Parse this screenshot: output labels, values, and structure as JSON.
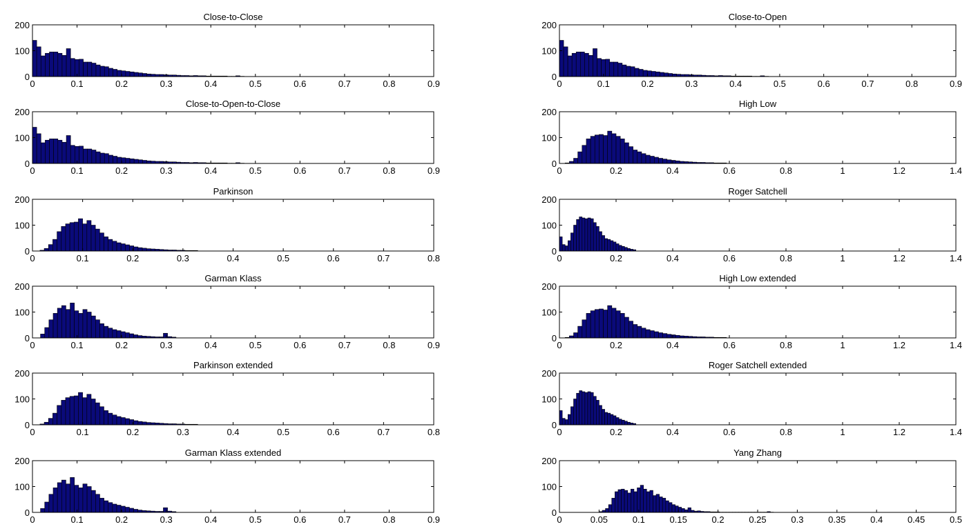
{
  "figure": {
    "bar_color": "#0a0a7a",
    "bar_edge_color": "#000000",
    "background": "#ffffff"
  },
  "chart_data": [
    {
      "type": "bar",
      "title": "Close-to-Close",
      "xlim": [
        0,
        0.9
      ],
      "ylim": [
        0,
        200
      ],
      "xticks": [
        0,
        0.1,
        0.2,
        0.3,
        0.4,
        0.5,
        0.6,
        0.7,
        0.8,
        0.9
      ],
      "xtick_labels": [
        "0",
        "0.1",
        "0.2",
        "0.3",
        "0.4",
        "0.5",
        "0.6",
        "0.7",
        "0.8",
        "0.9"
      ],
      "yticks": [
        0,
        100,
        200
      ],
      "bin_start": 0,
      "bin_width": 0.0095,
      "values": [
        140,
        115,
        80,
        90,
        95,
        95,
        90,
        82,
        108,
        70,
        66,
        67,
        56,
        56,
        52,
        45,
        40,
        38,
        32,
        28,
        24,
        22,
        20,
        18,
        16,
        14,
        12,
        10,
        9,
        8,
        8,
        7,
        6,
        6,
        5,
        4,
        4,
        3,
        4,
        3,
        3,
        2,
        2,
        2,
        2,
        2,
        1,
        1,
        3,
        1
      ]
    },
    {
      "type": "bar",
      "title": "Close-to-Open",
      "xlim": [
        0,
        0.9
      ],
      "ylim": [
        0,
        200
      ],
      "xticks": [
        0,
        0.1,
        0.2,
        0.3,
        0.4,
        0.5,
        0.6,
        0.7,
        0.8,
        0.9
      ],
      "xtick_labels": [
        "0",
        "0.1",
        "0.2",
        "0.3",
        "0.4",
        "0.5",
        "0.6",
        "0.7",
        "0.8",
        "0.9"
      ],
      "yticks": [
        0,
        100,
        200
      ],
      "bin_start": 0,
      "bin_width": 0.0095,
      "values": [
        140,
        115,
        80,
        90,
        95,
        95,
        90,
        82,
        108,
        70,
        66,
        67,
        56,
        56,
        52,
        45,
        40,
        38,
        32,
        28,
        24,
        22,
        20,
        18,
        16,
        14,
        12,
        10,
        9,
        8,
        8,
        7,
        6,
        6,
        5,
        4,
        4,
        3,
        4,
        3,
        3,
        2,
        2,
        2,
        2,
        2,
        1,
        1,
        3,
        1
      ]
    },
    {
      "type": "bar",
      "title": "Close-to-Open-to-Close",
      "xlim": [
        0,
        0.9
      ],
      "ylim": [
        0,
        200
      ],
      "xticks": [
        0,
        0.1,
        0.2,
        0.3,
        0.4,
        0.5,
        0.6,
        0.7,
        0.8,
        0.9
      ],
      "xtick_labels": [
        "0",
        "0.1",
        "0.2",
        "0.3",
        "0.4",
        "0.5",
        "0.6",
        "0.7",
        "0.8",
        "0.9"
      ],
      "yticks": [
        0,
        100,
        200
      ],
      "bin_start": 0,
      "bin_width": 0.0095,
      "values": [
        140,
        115,
        80,
        90,
        95,
        95,
        90,
        82,
        108,
        70,
        66,
        67,
        56,
        56,
        52,
        45,
        40,
        38,
        32,
        28,
        24,
        22,
        20,
        18,
        16,
        14,
        12,
        10,
        9,
        8,
        8,
        7,
        6,
        6,
        5,
        4,
        4,
        3,
        4,
        3,
        3,
        2,
        2,
        2,
        2,
        2,
        1,
        1,
        3,
        1
      ]
    },
    {
      "type": "bar",
      "title": "High Low",
      "xlim": [
        0,
        1.4
      ],
      "ylim": [
        0,
        200
      ],
      "xticks": [
        0,
        0.2,
        0.4,
        0.6,
        0.8,
        1,
        1.2,
        1.4
      ],
      "xtick_labels": [
        "0",
        "0.2",
        "0.4",
        "0.6",
        "0.8",
        "1",
        "1.2",
        "1.4"
      ],
      "yticks": [
        0,
        100,
        200
      ],
      "bin_start": 0.02,
      "bin_width": 0.015,
      "values": [
        2,
        8,
        20,
        45,
        70,
        95,
        105,
        110,
        112,
        108,
        125,
        115,
        105,
        95,
        80,
        65,
        52,
        45,
        38,
        32,
        28,
        24,
        20,
        17,
        14,
        12,
        10,
        8,
        7,
        6,
        5,
        4,
        4,
        3,
        3,
        2,
        2,
        2
      ]
    },
    {
      "type": "bar",
      "title": "Parkinson",
      "xlim": [
        0,
        0.8
      ],
      "ylim": [
        0,
        200
      ],
      "xticks": [
        0,
        0.1,
        0.2,
        0.3,
        0.4,
        0.5,
        0.6,
        0.7,
        0.8
      ],
      "xtick_labels": [
        "0",
        "0.1",
        "0.2",
        "0.3",
        "0.4",
        "0.5",
        "0.6",
        "0.7",
        "0.8"
      ],
      "yticks": [
        0,
        100,
        200
      ],
      "bin_start": 0.015,
      "bin_width": 0.0085,
      "values": [
        3,
        10,
        25,
        45,
        75,
        95,
        105,
        110,
        112,
        125,
        105,
        118,
        100,
        85,
        70,
        55,
        45,
        38,
        32,
        28,
        24,
        20,
        16,
        13,
        11,
        9,
        8,
        7,
        6,
        5,
        4,
        4,
        3,
        3,
        2,
        2,
        2
      ]
    },
    {
      "type": "bar",
      "title": "Roger Satchell",
      "xlim": [
        0,
        1.4
      ],
      "ylim": [
        0,
        200
      ],
      "xticks": [
        0,
        0.2,
        0.4,
        0.6,
        0.8,
        1,
        1.2,
        1.4
      ],
      "xtick_labels": [
        "0",
        "0.2",
        "0.4",
        "0.6",
        "0.8",
        "1",
        "1.2",
        "1.4"
      ],
      "yticks": [
        0,
        100,
        200
      ],
      "bin_start": 0,
      "bin_width": 0.01,
      "values": [
        55,
        25,
        20,
        40,
        70,
        100,
        122,
        132,
        128,
        125,
        128,
        125,
        110,
        95,
        75,
        60,
        48,
        45,
        40,
        35,
        28,
        22,
        18,
        14,
        10,
        7,
        5
      ]
    },
    {
      "type": "bar",
      "title": "Garman Klass",
      "xlim": [
        0,
        0.9
      ],
      "ylim": [
        0,
        200
      ],
      "xticks": [
        0,
        0.1,
        0.2,
        0.3,
        0.4,
        0.5,
        0.6,
        0.7,
        0.8,
        0.9
      ],
      "xtick_labels": [
        "0",
        "0.1",
        "0.2",
        "0.3",
        "0.4",
        "0.5",
        "0.6",
        "0.7",
        "0.8",
        "0.9"
      ],
      "yticks": [
        0,
        100,
        200
      ],
      "bin_start": 0.018,
      "bin_width": 0.0095,
      "values": [
        15,
        40,
        70,
        95,
        115,
        125,
        110,
        135,
        105,
        95,
        110,
        100,
        85,
        70,
        55,
        45,
        38,
        32,
        28,
        24,
        20,
        16,
        12,
        9,
        7,
        6,
        5,
        4,
        4,
        18,
        5,
        3
      ]
    },
    {
      "type": "bar",
      "title": "High Low extended",
      "xlim": [
        0,
        1.4
      ],
      "ylim": [
        0,
        200
      ],
      "xticks": [
        0,
        0.2,
        0.4,
        0.6,
        0.8,
        1,
        1.2,
        1.4
      ],
      "xtick_labels": [
        "0",
        "0.2",
        "0.4",
        "0.6",
        "0.8",
        "1",
        "1.2",
        "1.4"
      ],
      "yticks": [
        0,
        100,
        200
      ],
      "bin_start": 0.02,
      "bin_width": 0.015,
      "values": [
        2,
        8,
        20,
        45,
        70,
        95,
        105,
        110,
        112,
        108,
        125,
        115,
        105,
        95,
        80,
        65,
        52,
        45,
        38,
        32,
        28,
        24,
        20,
        17,
        14,
        12,
        10,
        8,
        7,
        6,
        5,
        4,
        4,
        3,
        3,
        2,
        2,
        2
      ]
    },
    {
      "type": "bar",
      "title": "Parkinson extended",
      "xlim": [
        0,
        0.8
      ],
      "ylim": [
        0,
        200
      ],
      "xticks": [
        0,
        0.1,
        0.2,
        0.3,
        0.4,
        0.5,
        0.6,
        0.7,
        0.8
      ],
      "xtick_labels": [
        "0",
        "0.1",
        "0.2",
        "0.3",
        "0.4",
        "0.5",
        "0.6",
        "0.7",
        "0.8"
      ],
      "yticks": [
        0,
        100,
        200
      ],
      "bin_start": 0.015,
      "bin_width": 0.0085,
      "values": [
        3,
        10,
        25,
        45,
        75,
        95,
        105,
        110,
        112,
        125,
        105,
        118,
        100,
        85,
        70,
        55,
        45,
        38,
        32,
        28,
        24,
        20,
        16,
        13,
        11,
        9,
        8,
        7,
        6,
        5,
        4,
        4,
        3,
        3,
        2,
        2,
        2
      ]
    },
    {
      "type": "bar",
      "title": "Roger Satchell extended",
      "xlim": [
        0,
        1.4
      ],
      "ylim": [
        0,
        200
      ],
      "xticks": [
        0,
        0.2,
        0.4,
        0.6,
        0.8,
        1,
        1.2,
        1.4
      ],
      "xtick_labels": [
        "0",
        "0.2",
        "0.4",
        "0.6",
        "0.8",
        "1",
        "1.2",
        "1.4"
      ],
      "yticks": [
        0,
        100,
        200
      ],
      "bin_start": 0,
      "bin_width": 0.01,
      "values": [
        55,
        25,
        20,
        40,
        70,
        100,
        122,
        132,
        128,
        125,
        128,
        125,
        110,
        95,
        75,
        60,
        48,
        45,
        40,
        35,
        28,
        22,
        18,
        14,
        10,
        7,
        5
      ]
    },
    {
      "type": "bar",
      "title": "Garman Klass extended",
      "xlim": [
        0,
        0.9
      ],
      "ylim": [
        0,
        200
      ],
      "xticks": [
        0,
        0.1,
        0.2,
        0.3,
        0.4,
        0.5,
        0.6,
        0.7,
        0.8,
        0.9
      ],
      "xtick_labels": [
        "0",
        "0.1",
        "0.2",
        "0.3",
        "0.4",
        "0.5",
        "0.6",
        "0.7",
        "0.8",
        "0.9"
      ],
      "yticks": [
        0,
        100,
        200
      ],
      "bin_start": 0.018,
      "bin_width": 0.0095,
      "values": [
        15,
        40,
        70,
        95,
        115,
        125,
        110,
        135,
        105,
        95,
        110,
        100,
        85,
        70,
        55,
        45,
        38,
        32,
        28,
        24,
        20,
        16,
        12,
        9,
        7,
        6,
        5,
        4,
        4,
        18,
        5,
        3
      ]
    },
    {
      "type": "bar",
      "title": "Yang Zhang",
      "xlim": [
        0,
        0.5
      ],
      "ylim": [
        0,
        200
      ],
      "xticks": [
        0,
        0.05,
        0.1,
        0.15,
        0.2,
        0.25,
        0.3,
        0.35,
        0.4,
        0.45,
        0.5
      ],
      "xtick_labels": [
        "0",
        "0.05",
        "0.1",
        "0.15",
        "0.2",
        "0.25",
        "0.3",
        "0.35",
        "0.4",
        "0.45",
        "0.5"
      ],
      "yticks": [
        0,
        100,
        200
      ],
      "bin_start": 0.05,
      "bin_width": 0.004,
      "values": [
        3,
        8,
        15,
        30,
        55,
        80,
        88,
        90,
        85,
        75,
        90,
        80,
        95,
        105,
        90,
        80,
        85,
        65,
        70,
        60,
        55,
        45,
        38,
        30,
        25,
        20,
        15,
        10,
        18,
        8,
        5,
        6,
        4,
        3,
        3,
        2,
        2,
        2,
        1,
        1,
        1,
        1,
        1,
        1,
        1,
        1,
        1,
        1,
        1,
        1,
        1,
        1,
        1,
        3,
        1
      ]
    }
  ]
}
